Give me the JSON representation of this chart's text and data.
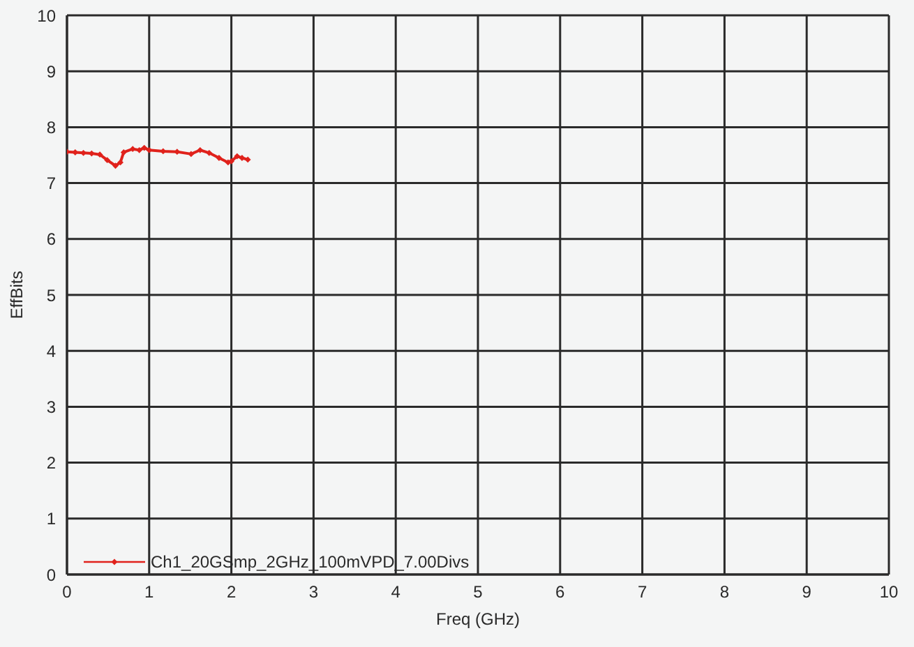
{
  "chart_data": {
    "type": "line",
    "xlabel": "Freq (GHz)",
    "ylabel": "EffBits",
    "xlim": [
      0,
      10
    ],
    "xticks": [
      0,
      1,
      2,
      3,
      4,
      5,
      6,
      7,
      8,
      9,
      10
    ],
    "ylim": [
      0,
      10
    ],
    "yticks": [
      0,
      1,
      2,
      3,
      4,
      5,
      6,
      7,
      8,
      9,
      10
    ],
    "grid": true,
    "legend": "bottom left",
    "marker": "diamond",
    "line_style": "solid",
    "series": [
      {
        "name": "Ch1_20GSmp_2GHz_100mVPD_7.00Divs",
        "color": "#e0221c",
        "x": [
          0,
          0.1,
          0.2,
          0.3,
          0.4,
          0.49,
          0.59,
          0.65,
          0.69,
          0.8,
          0.88,
          0.94,
          1.0,
          1.17,
          1.34,
          1.51,
          1.62,
          1.73,
          1.85,
          1.96,
          2.0,
          2.07,
          2.13,
          2.2
        ],
        "values": [
          7.56,
          7.55,
          7.54,
          7.53,
          7.51,
          7.41,
          7.31,
          7.37,
          7.55,
          7.61,
          7.59,
          7.63,
          7.59,
          7.57,
          7.56,
          7.52,
          7.59,
          7.54,
          7.45,
          7.37,
          7.39,
          7.48,
          7.45,
          7.42
        ]
      }
    ]
  }
}
